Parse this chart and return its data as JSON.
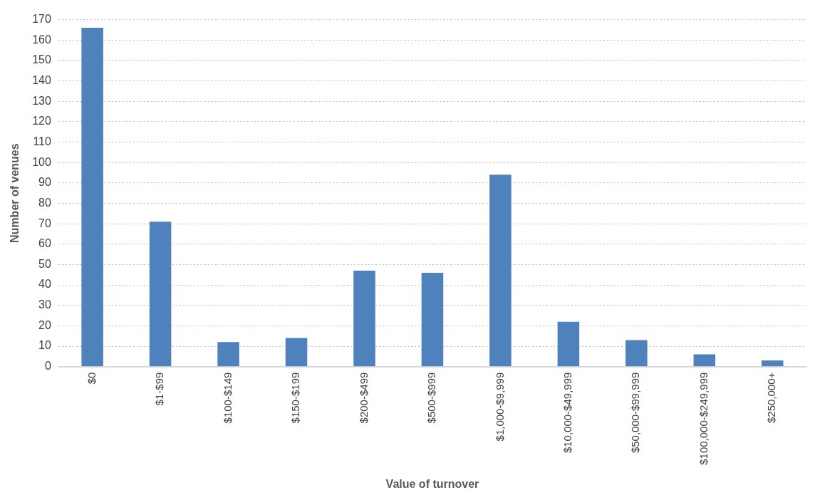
{
  "chart_data": {
    "type": "bar",
    "xlabel": "Value of turnover",
    "ylabel": "Number of venues",
    "categories": [
      "$0",
      "$1-$99",
      "$100-$149",
      "$150-$199",
      "$200-$499",
      "$500-$999",
      "$1,000-$9,999",
      "$10,000-$49,999",
      "$50,000-$99,999",
      "$100,000-$249,999",
      "$250,000+"
    ],
    "values": [
      166,
      71,
      12,
      14,
      47,
      46,
      94,
      22,
      13,
      6,
      3
    ],
    "color": "#4f81bd",
    "ylim": [
      0,
      170
    ],
    "yticks": [
      0,
      10,
      20,
      30,
      40,
      50,
      60,
      70,
      80,
      90,
      100,
      110,
      120,
      130,
      140,
      150,
      160,
      170
    ],
    "grid": "y",
    "legend": false
  }
}
